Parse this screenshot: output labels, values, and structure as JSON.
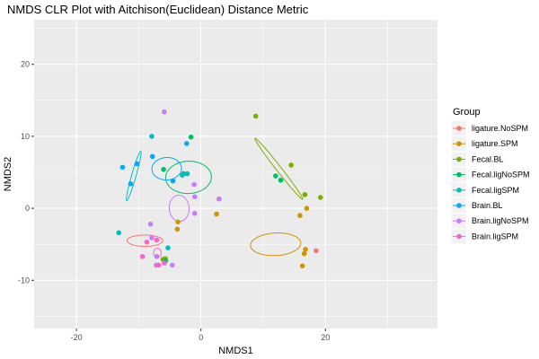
{
  "chart_data": {
    "type": "scatter",
    "title": "NMDS CLR Plot with Aitchison(Euclidean) Distance Metric",
    "xlabel": "NMDS1",
    "ylabel": "NMDS2",
    "xlim": [
      -26.8,
      38.0
    ],
    "ylim": [
      -16.7,
      26.2
    ],
    "xticks": [
      -20,
      0,
      20
    ],
    "yticks": [
      -10,
      0,
      10,
      20
    ],
    "grid": true,
    "legend_title": "Group",
    "legend_position": "right",
    "series": [
      {
        "name": "ligature.NoSPM",
        "color": "#F8766D",
        "points": [
          [
            18.5,
            -5.9
          ]
        ],
        "ellipse": {
          "cx": -9,
          "cy": -4.5,
          "rx": 20,
          "ry": 6.3,
          "angle": 0
        }
      },
      {
        "name": "ligature.SPM",
        "color": "#CD9600",
        "points": [
          [
            2.5,
            -0.8
          ],
          [
            15.9,
            -1.0
          ],
          [
            17.0,
            0.0
          ],
          [
            16.3,
            -8.0
          ],
          [
            16.6,
            -6.3
          ],
          [
            16.8,
            -5.7
          ],
          [
            -3.7,
            -1.9
          ],
          [
            -3.8,
            -2.9
          ]
        ],
        "ellipse": {
          "cx": 12,
          "cy": -5,
          "rx": 28,
          "ry": 12.6,
          "angle": 3
        }
      },
      {
        "name": "Fecal.BL",
        "color": "#7CAE00",
        "points": [
          [
            8.8,
            12.8
          ],
          [
            14.5,
            6.0
          ],
          [
            16.7,
            1.9
          ],
          [
            19.2,
            1.5
          ],
          [
            -6.1,
            -7.1
          ],
          [
            -5.7,
            -7.0
          ]
        ],
        "ellipse": {
          "cx": 12.5,
          "cy": 5.5,
          "rx": 43,
          "ry": 2.8,
          "angle": -52
        }
      },
      {
        "name": "Fecal.ligNoSPM",
        "color": "#00BE67",
        "points": [
          [
            -1.6,
            9.9
          ],
          [
            12.0,
            4.5
          ],
          [
            12.8,
            3.9
          ],
          [
            -2.8,
            4.8
          ],
          [
            -6.0,
            5.4
          ],
          [
            -5.7,
            -7.3
          ]
        ],
        "ellipse": {
          "cx": -2,
          "cy": 4.3,
          "rx": 25.5,
          "ry": 18,
          "angle": 2
        }
      },
      {
        "name": "Fecal.ligSPM",
        "color": "#00BFC4",
        "points": [
          [
            -13.2,
            -3.4
          ],
          [
            -7.9,
            10.0
          ],
          [
            -2.2,
            4.8
          ],
          [
            -3.0,
            4.6
          ],
          [
            -5.3,
            -5.5
          ]
        ],
        "ellipse": {
          "cx": -10.8,
          "cy": 4.5,
          "rx": 28.5,
          "ry": 2.5,
          "angle": 74
        }
      },
      {
        "name": "Brain.BL",
        "color": "#00A9FF",
        "points": [
          [
            -12.6,
            5.7
          ],
          [
            -10.3,
            6.2
          ],
          [
            -11.3,
            3.4
          ],
          [
            -7.8,
            7.2
          ],
          [
            -2.3,
            9.0
          ],
          [
            -4.5,
            3.8
          ]
        ],
        "ellipse": {
          "cx": -5.5,
          "cy": 5.5,
          "rx": 16.5,
          "ry": 12.5,
          "angle": 3
        }
      },
      {
        "name": "Brain.ligNoSPM",
        "color": "#C77CFF",
        "points": [
          [
            -5.9,
            13.4
          ],
          [
            2.9,
            1.3
          ],
          [
            -1.1,
            3.3
          ],
          [
            -1.0,
            1.6
          ],
          [
            -1.0,
            -0.7
          ],
          [
            -8.1,
            -2.2
          ],
          [
            -7.1,
            -6.7
          ],
          [
            -4.6,
            -7.9
          ],
          [
            -7.2,
            -7.9
          ],
          [
            -7.9,
            -4.1
          ]
        ],
        "ellipse": {
          "cx": -3.5,
          "cy": 0,
          "rx": 11,
          "ry": 14.6,
          "angle": 4
        }
      },
      {
        "name": "Brain.ligSPM",
        "color": "#FF61CC",
        "points": [
          [
            -8.7,
            -4.7
          ],
          [
            -7.1,
            -4.4
          ],
          [
            -5.9,
            -7.6
          ],
          [
            -6.8,
            -7.9
          ],
          [
            -9.4,
            -6.7
          ]
        ],
        "ellipse": {
          "cx": -7,
          "cy": -6.2,
          "rx": 4.2,
          "ry": 5.2,
          "angle": 0
        }
      }
    ]
  }
}
